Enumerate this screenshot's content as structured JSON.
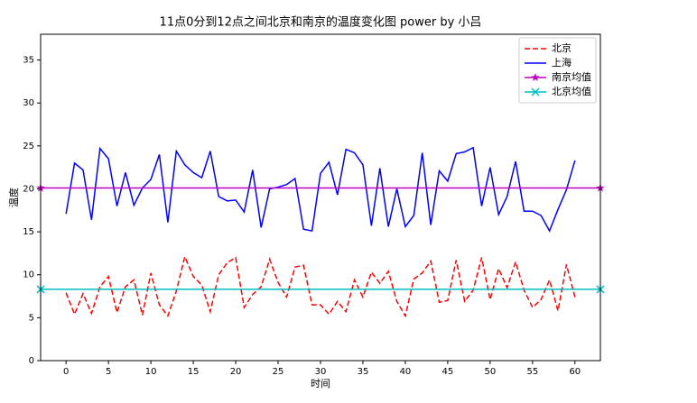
{
  "chart_data": {
    "type": "line",
    "title": "11点0分到12点之间北京和南京的温度变化图 power by 小吕",
    "x_label": "时间",
    "y_label": "温度",
    "xlim": [
      -3,
      63
    ],
    "ylim": [
      0,
      38
    ],
    "xticks": [
      0,
      5,
      10,
      15,
      20,
      25,
      30,
      35,
      40,
      45,
      50,
      55,
      60
    ],
    "yticks": [
      0,
      5,
      10,
      15,
      20,
      25,
      30,
      35
    ],
    "legend": "upper right",
    "series": [
      {
        "name": "北京",
        "color": "#ff0000",
        "linestyle": "--",
        "x": [
          0,
          1,
          2,
          3,
          4,
          5,
          6,
          7,
          8,
          9,
          10,
          11,
          12,
          13,
          14,
          15,
          16,
          17,
          18,
          19,
          20,
          21,
          22,
          23,
          24,
          25,
          26,
          27,
          28,
          29,
          30,
          31,
          32,
          33,
          34,
          35,
          36,
          37,
          38,
          39,
          40,
          41,
          42,
          43,
          44,
          45,
          46,
          47,
          48,
          49,
          50,
          51,
          52,
          53,
          54,
          55,
          56,
          57,
          58,
          59,
          60
        ],
        "values": [
          7.9,
          5.4,
          7.8,
          5.5,
          8.6,
          9.8,
          5.6,
          8.6,
          9.4,
          5.3,
          10.2,
          6.5,
          5.2,
          8.1,
          12.1,
          9.8,
          8.8,
          5.7,
          10.0,
          11.4,
          12.0,
          6.2,
          7.7,
          8.6,
          11.8,
          9.1,
          7.4,
          10.9,
          11.1,
          6.5,
          6.5,
          5.4,
          6.9,
          5.7,
          9.4,
          7.4,
          10.3,
          9.0,
          10.4,
          6.9,
          5.2,
          9.5,
          10.2,
          11.6,
          6.8,
          7.0,
          11.7,
          6.9,
          8.2,
          12.0,
          7.1,
          10.7,
          8.5,
          11.5,
          8.2,
          6.2,
          7.1,
          9.4,
          5.8,
          11.2,
          7.4
        ]
      },
      {
        "name": "上海",
        "color": "#0000ff",
        "linestyle": "-",
        "x": [
          0,
          1,
          2,
          3,
          4,
          5,
          6,
          7,
          8,
          9,
          10,
          11,
          12,
          13,
          14,
          15,
          16,
          17,
          18,
          19,
          20,
          21,
          22,
          23,
          24,
          25,
          26,
          27,
          28,
          29,
          30,
          31,
          32,
          33,
          34,
          35,
          36,
          37,
          38,
          39,
          40,
          41,
          42,
          43,
          44,
          45,
          46,
          47,
          48,
          49,
          50,
          51,
          52,
          53,
          54,
          55,
          56,
          57,
          58,
          59,
          60
        ],
        "values": [
          17.1,
          23.0,
          22.2,
          16.4,
          24.7,
          23.5,
          18.0,
          21.9,
          18.1,
          20.1,
          21.1,
          24.0,
          16.1,
          24.4,
          22.8,
          21.9,
          21.3,
          24.4,
          19.1,
          18.6,
          18.7,
          17.3,
          22.2,
          15.5,
          20.0,
          20.2,
          20.5,
          21.2,
          15.3,
          15.1,
          21.8,
          23.1,
          19.3,
          24.6,
          24.2,
          22.8,
          15.7,
          22.4,
          15.6,
          20.0,
          15.6,
          16.9,
          24.2,
          15.8,
          22.1,
          20.9,
          24.1,
          24.3,
          24.8,
          18.0,
          22.5,
          17.0,
          19.1,
          23.2,
          17.4,
          17.4,
          16.9,
          15.1,
          17.6,
          19.9,
          23.3
        ]
      },
      {
        "name": "南京均值",
        "color": "#bf00bf",
        "linestyle": "-",
        "marker": "*",
        "x": [
          -3,
          63
        ],
        "values": [
          20.1,
          20.1
        ]
      },
      {
        "name": "北京均值",
        "color": "#00bfbf",
        "linestyle": "-",
        "marker": "x",
        "x": [
          -3,
          63
        ],
        "values": [
          8.3,
          8.3
        ]
      }
    ]
  }
}
